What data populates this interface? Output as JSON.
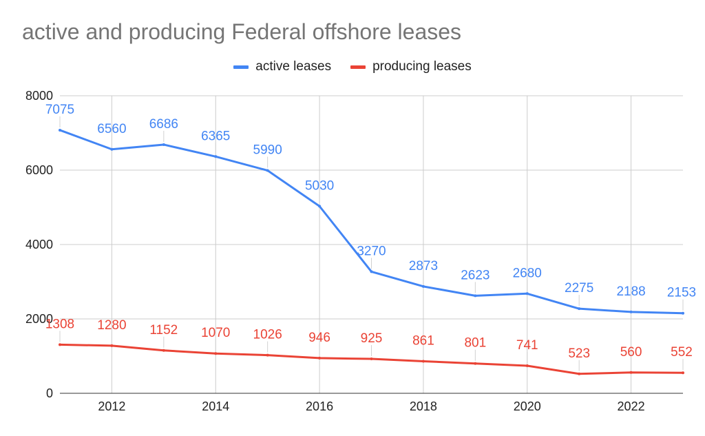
{
  "chart_data": {
    "type": "line",
    "title": "active and producing Federal offshore leases",
    "x": [
      2011,
      2012,
      2013,
      2014,
      2015,
      2016,
      2017,
      2018,
      2019,
      2020,
      2021,
      2022,
      2023
    ],
    "xlim": [
      2011,
      2023
    ],
    "ylim": [
      0,
      8000
    ],
    "x_ticks": [
      "2012",
      "2014",
      "2016",
      "2018",
      "2020",
      "2022"
    ],
    "y_ticks": [
      "0",
      "2000",
      "4000",
      "6000",
      "8000"
    ],
    "xlabel": "",
    "ylabel": "",
    "legend_position": "top-center",
    "grid": true,
    "series": [
      {
        "name": "active leases",
        "color": "#4285f4",
        "values": [
          7075,
          6560,
          6686,
          6365,
          5990,
          5030,
          3270,
          2873,
          2623,
          2680,
          2275,
          2188,
          2153
        ]
      },
      {
        "name": "producing leases",
        "color": "#ea4335",
        "values": [
          1308,
          1280,
          1152,
          1070,
          1026,
          946,
          925,
          861,
          801,
          741,
          523,
          560,
          552
        ]
      }
    ]
  }
}
